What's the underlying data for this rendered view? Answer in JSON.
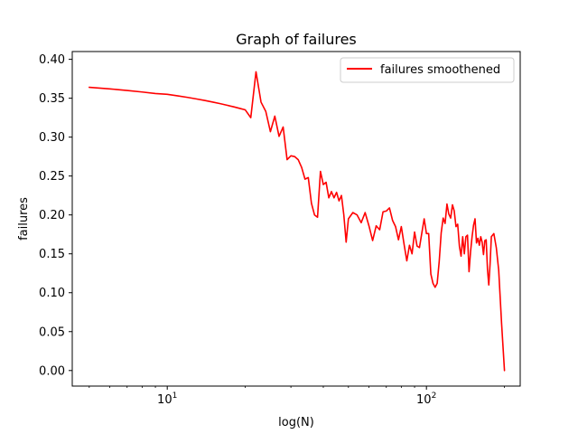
{
  "chart_data": {
    "type": "line",
    "title": "Graph of failures",
    "xlabel": "log(N)",
    "ylabel": "failures",
    "xscale": "log",
    "xlim": [
      4.3,
      230
    ],
    "ylim": [
      -0.02,
      0.41
    ],
    "yticks": [
      0.0,
      0.05,
      0.1,
      0.15,
      0.2,
      0.25,
      0.3,
      0.35,
      0.4
    ],
    "ytick_labels": [
      "0.00",
      "0.05",
      "0.10",
      "0.15",
      "0.20",
      "0.25",
      "0.30",
      "0.35",
      "0.40"
    ],
    "xticks_major": [
      {
        "value": 10,
        "base": "10",
        "exp": "1"
      },
      {
        "value": 100,
        "base": "10",
        "exp": "2"
      }
    ],
    "xticks_minor": [
      5,
      6,
      7,
      8,
      9,
      20,
      30,
      40,
      50,
      60,
      70,
      80,
      90,
      200
    ],
    "grid": false,
    "legend_position": "top-right",
    "colors": {
      "line": "#ff0000"
    },
    "series": [
      {
        "name": "failures smoothened",
        "color": "#ff0000",
        "points": [
          [
            5,
            0.364
          ],
          [
            6,
            0.362
          ],
          [
            7,
            0.36
          ],
          [
            8,
            0.358
          ],
          [
            9,
            0.356
          ],
          [
            10,
            0.355
          ],
          [
            11,
            0.353
          ],
          [
            12,
            0.351
          ],
          [
            13,
            0.349
          ],
          [
            14,
            0.347
          ],
          [
            15,
            0.345
          ],
          [
            16,
            0.343
          ],
          [
            17,
            0.341
          ],
          [
            18,
            0.339
          ],
          [
            19,
            0.337
          ],
          [
            20,
            0.335
          ],
          [
            21,
            0.325
          ],
          [
            22,
            0.384
          ],
          [
            23,
            0.345
          ],
          [
            24,
            0.333
          ],
          [
            25,
            0.307
          ],
          [
            26,
            0.327
          ],
          [
            27,
            0.301
          ],
          [
            28,
            0.313
          ],
          [
            29,
            0.271
          ],
          [
            30,
            0.276
          ],
          [
            31,
            0.275
          ],
          [
            32,
            0.271
          ],
          [
            33,
            0.261
          ],
          [
            34,
            0.246
          ],
          [
            35,
            0.248
          ],
          [
            36,
            0.215
          ],
          [
            37,
            0.2
          ],
          [
            38,
            0.197
          ],
          [
            39,
            0.256
          ],
          [
            40,
            0.239
          ],
          [
            41,
            0.242
          ],
          [
            42,
            0.222
          ],
          [
            43,
            0.23
          ],
          [
            44,
            0.222
          ],
          [
            45,
            0.229
          ],
          [
            46,
            0.218
          ],
          [
            47,
            0.225
          ],
          [
            48,
            0.2
          ],
          [
            49,
            0.165
          ],
          [
            50,
            0.195
          ],
          [
            52,
            0.203
          ],
          [
            54,
            0.2
          ],
          [
            56,
            0.19
          ],
          [
            58,
            0.203
          ],
          [
            60,
            0.186
          ],
          [
            62,
            0.167
          ],
          [
            64,
            0.186
          ],
          [
            66,
            0.181
          ],
          [
            68,
            0.204
          ],
          [
            70,
            0.205
          ],
          [
            72,
            0.209
          ],
          [
            74,
            0.193
          ],
          [
            76,
            0.185
          ],
          [
            78,
            0.168
          ],
          [
            80,
            0.185
          ],
          [
            82,
            0.162
          ],
          [
            84,
            0.141
          ],
          [
            86,
            0.161
          ],
          [
            88,
            0.15
          ],
          [
            90,
            0.178
          ],
          [
            92,
            0.16
          ],
          [
            94,
            0.158
          ],
          [
            96,
            0.177
          ],
          [
            98,
            0.195
          ],
          [
            100,
            0.176
          ],
          [
            102,
            0.176
          ],
          [
            104,
            0.124
          ],
          [
            106,
            0.112
          ],
          [
            108,
            0.107
          ],
          [
            110,
            0.112
          ],
          [
            112,
            0.14
          ],
          [
            114,
            0.177
          ],
          [
            116,
            0.196
          ],
          [
            118,
            0.189
          ],
          [
            120,
            0.214
          ],
          [
            122,
            0.201
          ],
          [
            124,
            0.196
          ],
          [
            126,
            0.213
          ],
          [
            128,
            0.205
          ],
          [
            130,
            0.185
          ],
          [
            132,
            0.188
          ],
          [
            134,
            0.16
          ],
          [
            136,
            0.147
          ],
          [
            138,
            0.172
          ],
          [
            140,
            0.15
          ],
          [
            142,
            0.172
          ],
          [
            144,
            0.174
          ],
          [
            146,
            0.127
          ],
          [
            148,
            0.153
          ],
          [
            150,
            0.172
          ],
          [
            152,
            0.187
          ],
          [
            154,
            0.195
          ],
          [
            156,
            0.164
          ],
          [
            158,
            0.17
          ],
          [
            160,
            0.161
          ],
          [
            162,
            0.172
          ],
          [
            164,
            0.165
          ],
          [
            166,
            0.149
          ],
          [
            168,
            0.167
          ],
          [
            170,
            0.168
          ],
          [
            172,
            0.13
          ],
          [
            174,
            0.11
          ],
          [
            176,
            0.137
          ],
          [
            178,
            0.172
          ],
          [
            182,
            0.176
          ],
          [
            186,
            0.158
          ],
          [
            190,
            0.129
          ],
          [
            195,
            0.06
          ],
          [
            200,
            0.0
          ]
        ]
      }
    ]
  }
}
